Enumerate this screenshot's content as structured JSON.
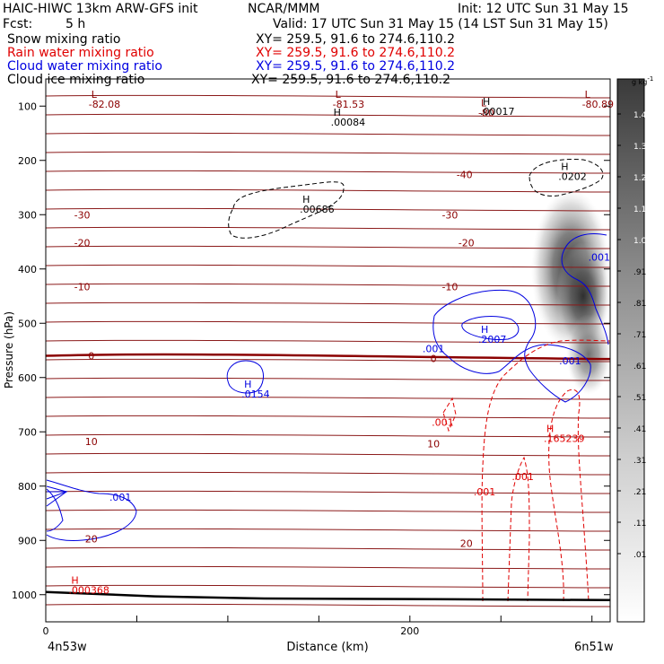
{
  "header": {
    "model": "HAIC-HIWC 13km ARW-GFS init",
    "org": "NCAR/MMM",
    "init": "Init: 12 UTC Sun 31 May 15",
    "fcst_label": "Fcst:",
    "fcst_value": "5 h",
    "valid": "Valid: 17 UTC Sun 31 May 15 (14 LST Sun 31 May 15)",
    "fields": [
      {
        "name": "Snow mixing ratio",
        "xy": "XY= 259.5, 91.6 to 274.6,110.2",
        "color": "#000000"
      },
      {
        "name": "Rain water mixing ratio",
        "xy": "XY= 259.5, 91.6 to 274.6,110.2",
        "color": "#e00000"
      },
      {
        "name": "Cloud water mixing ratio",
        "xy": "XY= 259.5, 91.6 to 274.6,110.2",
        "color": "#0000e0"
      },
      {
        "name": "Cloud ice mixing ratio",
        "xy": "XY= 259.5, 91.6 to 274.6,110.2",
        "color": "#000000"
      }
    ]
  },
  "chart_data": {
    "type": "contour",
    "ylabel": "Pressure (hPa)",
    "xlabel": "Distance (km)",
    "yticks": [
      100,
      200,
      300,
      400,
      500,
      600,
      700,
      800,
      900,
      1000
    ],
    "xticks": [
      0,
      200
    ],
    "xlim": [
      0,
      310
    ],
    "ylim": [
      1050,
      50
    ],
    "left_location": "4n53w",
    "right_location": "6n51w",
    "colorbar": {
      "unit": "g kg",
      "unit_exp": "-1",
      "levels": [
        "1.41",
        "1.31",
        "1.21",
        "1.11",
        "1.01",
        ".91",
        ".81",
        ".71",
        ".61",
        ".51",
        ".41",
        ".31",
        ".21",
        ".11",
        ".01"
      ]
    },
    "temperature_labels": [
      {
        "text": "-40",
        "x": 230,
        "p": 226
      },
      {
        "text": "-30",
        "x": 20,
        "p": 300
      },
      {
        "text": "-30",
        "x": 222,
        "p": 300
      },
      {
        "text": "-20",
        "x": 20,
        "p": 352
      },
      {
        "text": "-20",
        "x": 231,
        "p": 352
      },
      {
        "text": "-10",
        "x": 20,
        "p": 433
      },
      {
        "text": "-10",
        "x": 222,
        "p": 433
      },
      {
        "text": "0",
        "x": 25,
        "p": 560
      },
      {
        "text": "0",
        "x": 213,
        "p": 565
      },
      {
        "text": "10",
        "x": 25,
        "p": 718
      },
      {
        "text": "10",
        "x": 213,
        "p": 722
      },
      {
        "text": "20",
        "x": 25,
        "p": 897
      },
      {
        "text": "20",
        "x": 231,
        "p": 905
      }
    ],
    "extrema": [
      {
        "kind": "L",
        "value": "-82.08",
        "x": 25,
        "p": 85,
        "color": "#8b0000"
      },
      {
        "kind": "L",
        "value": "-81.53",
        "x": 159,
        "p": 85,
        "color": "#8b0000"
      },
      {
        "kind": "L",
        "value": "-80.89",
        "x": 296,
        "p": 85,
        "color": "#8b0000"
      },
      {
        "kind": "L",
        "value": "-80",
        "x": 239,
        "p": 100,
        "color": "#8b0000"
      },
      {
        "kind": "H",
        "value": ".00084",
        "x": 158,
        "p": 118,
        "color": "#000000"
      },
      {
        "kind": "H",
        "value": ".00017",
        "x": 240,
        "p": 98,
        "color": "#000000"
      },
      {
        "kind": "H",
        "value": ".0202",
        "x": 283,
        "p": 218,
        "color": "#000000"
      },
      {
        "kind": "H",
        "value": ".00686",
        "x": 141,
        "p": 278,
        "color": "#000000"
      },
      {
        "kind": "H",
        "value": ".2007",
        "x": 239,
        "p": 518,
        "color": "#0000e0"
      },
      {
        "kind": "H",
        "value": ".0154",
        "x": 109,
        "p": 619,
        "color": "#0000e0"
      },
      {
        "kind": "H",
        "value": ".165239",
        "x": 275,
        "p": 700,
        "color": "#e00000"
      },
      {
        "kind": "H",
        "value": ".000368",
        "x": 14,
        "p": 980,
        "color": "#e00000"
      }
    ],
    "contour_labels": [
      {
        "text": ".001",
        "x": 304,
        "p": 378,
        "color": "#0000e0"
      },
      {
        "text": ".001",
        "x": 213,
        "p": 547,
        "color": "#0000e0"
      },
      {
        "text": ".001",
        "x": 288,
        "p": 569,
        "color": "#0000e0"
      },
      {
        "text": ".001",
        "x": 41,
        "p": 820,
        "color": "#0000e0"
      },
      {
        "text": ".001",
        "x": 218,
        "p": 682,
        "color": "#e00000"
      },
      {
        "text": ".001",
        "x": 262,
        "p": 782,
        "color": "#e00000"
      },
      {
        "text": ".001",
        "x": 241,
        "p": 810,
        "color": "#e00000"
      }
    ],
    "surface_pressure": [
      [
        0,
        995
      ],
      [
        60,
        1003
      ],
      [
        120,
        1007
      ],
      [
        200,
        1008
      ],
      [
        310,
        1010
      ]
    ]
  }
}
